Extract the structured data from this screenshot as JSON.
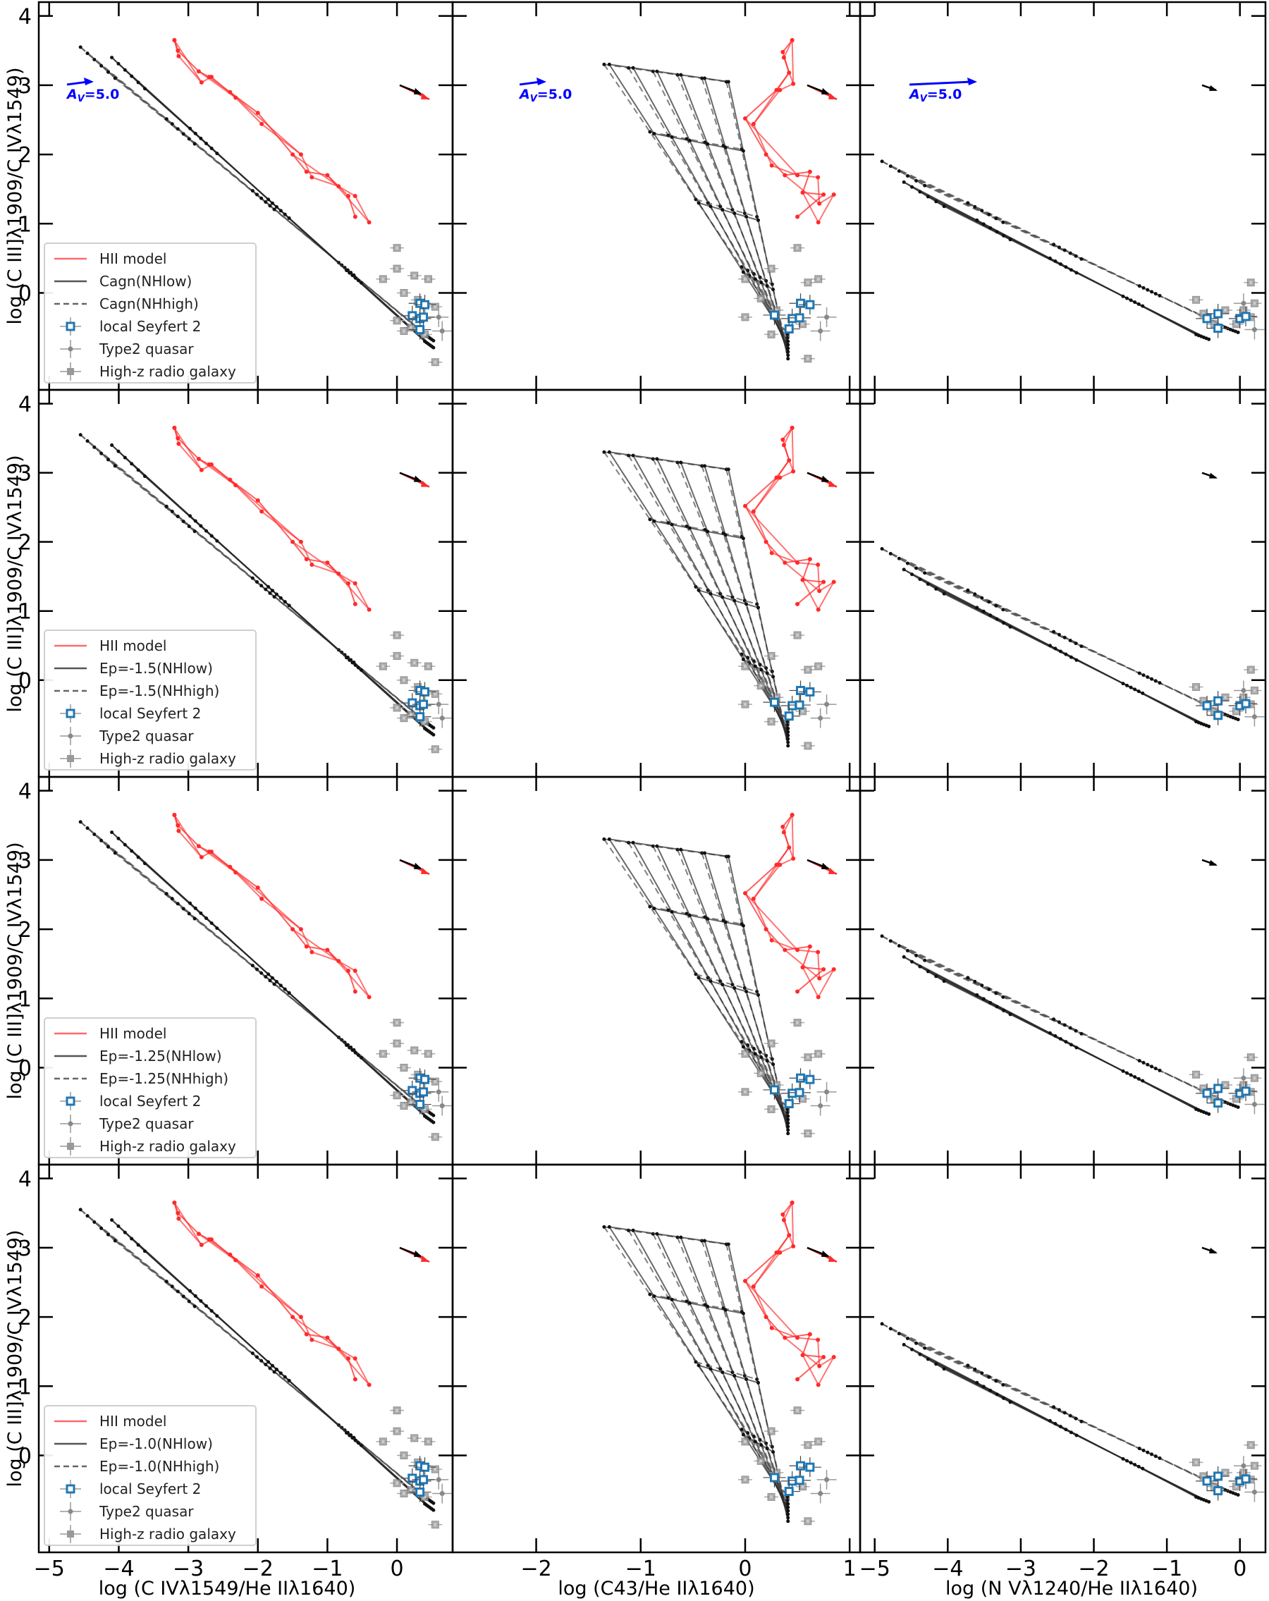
{
  "figure": {
    "ylabel": "log (C III]λ1909/C IVλ1549)",
    "xlabels": [
      "log (C IVλ1549/He IIλ1640)",
      "log (C43/He IIλ1640)",
      "log (N Vλ1240/He IIλ1640)"
    ],
    "reddening_label": "A_V=5.0",
    "reddening_label_main": "A",
    "reddening_label_sub": "V",
    "reddening_label_val": "=5.0"
  },
  "legends": [
    {
      "items": [
        "HII model",
        "Cagn(NHlow)",
        "Cagn(NHhigh)",
        "local Seyfert 2",
        "Type2 quasar",
        "High-z radio galaxy"
      ]
    },
    {
      "items": [
        "HII model",
        "Ep=-1.5(NHlow)",
        "Ep=-1.5(NHhigh)",
        "local Seyfert 2",
        "Type2 quasar",
        "High-z radio galaxy"
      ]
    },
    {
      "items": [
        "HII model",
        "Ep=-1.25(NHlow)",
        "Ep=-1.25(NHhigh)",
        "local Seyfert 2",
        "Type2 quasar",
        "High-z radio galaxy"
      ]
    },
    {
      "items": [
        "HII model",
        "Ep=-1.0(NHlow)",
        "Ep=-1.0(NHhigh)",
        "local Seyfert 2",
        "Type2 quasar",
        "High-z radio galaxy"
      ]
    }
  ],
  "colors": {
    "hii": "#ff2a2a",
    "agn": "#333333",
    "seyfert": "#1f77b4",
    "obs": "#808080",
    "av_arrow": "#0000ff"
  },
  "chart_data": {
    "type": "scatter",
    "title": "",
    "layout": "4 rows x 3 columns grid of line-ratio diagnostic diagrams (shared y-axis per row, shared x-axis per column)",
    "ylabel": "log (C III]λ1909/C IVλ1549)",
    "ylim": [
      -1.4,
      4.2
    ],
    "yticks": [
      0,
      1,
      2,
      3,
      4
    ],
    "columns": [
      {
        "xlabel": "log (C IVλ1549/He IIλ1640)",
        "xlim": [
          -5.15,
          0.8
        ],
        "xticks": [
          -5,
          -4,
          -3,
          -2,
          -1,
          0
        ]
      },
      {
        "xlabel": "log (C43/He IIλ1640)",
        "xlim": [
          -2.8,
          1.1
        ],
        "xticks": [
          -2,
          -1,
          0,
          1
        ]
      },
      {
        "xlabel": "log (N Vλ1240/He IIλ1640)",
        "xlim": [
          -5.2,
          0.35
        ],
        "xticks": [
          -5,
          -4,
          -3,
          -2,
          -1,
          0
        ]
      }
    ],
    "rows": [
      {
        "model": "Cagn",
        "legend": [
          "HII model",
          "Cagn(NHlow)",
          "Cagn(NHhigh)",
          "local Seyfert 2",
          "Type2 quasar",
          "High-z radio galaxy"
        ]
      },
      {
        "model": "Ep=-1.5",
        "legend": [
          "HII model",
          "Ep=-1.5(NHlow)",
          "Ep=-1.5(NHhigh)",
          "local Seyfert 2",
          "Type2 quasar",
          "High-z radio galaxy"
        ]
      },
      {
        "model": "Ep=-1.25",
        "legend": [
          "HII model",
          "Ep=-1.25(NHlow)",
          "Ep=-1.25(NHhigh)",
          "local Seyfert 2",
          "Type2 quasar",
          "High-z radio galaxy"
        ]
      },
      {
        "model": "Ep=-1.0",
        "legend": [
          "HII model",
          "Ep=-1.0(NHlow)",
          "Ep=-1.0(NHhigh)",
          "local Seyfert 2",
          "Type2 quasar",
          "High-z radio galaxy"
        ]
      }
    ],
    "annotations": [
      {
        "text": "A_V=5.0",
        "panels": "top row",
        "color": "blue",
        "note": "reddening vector arrow, pointing right"
      },
      {
        "text": "",
        "panels": "all",
        "note": "small black/red reddening arrows near (x_max, y=3)"
      }
    ],
    "series": [
      {
        "name": "HII model",
        "style": "red line grid with dots",
        "col1_points": [
          [
            -3.2,
            3.65
          ],
          [
            -3.15,
            3.5
          ],
          [
            -2.85,
            3.2
          ],
          [
            -2.7,
            3.12
          ],
          [
            -2.4,
            2.9
          ],
          [
            -2.0,
            2.6
          ],
          [
            -1.5,
            2.0
          ],
          [
            -1.3,
            1.75
          ],
          [
            -1.0,
            1.7
          ],
          [
            -0.7,
            1.4
          ],
          [
            -0.6,
            1.1
          ]
        ],
        "col2_points": [
          [
            0.45,
            3.65
          ],
          [
            0.36,
            3.48
          ],
          [
            0.42,
            3.18
          ],
          [
            0.3,
            2.93
          ],
          [
            0.0,
            2.52
          ],
          [
            0.2,
            2.0
          ],
          [
            0.38,
            1.7
          ],
          [
            0.62,
            1.75
          ],
          [
            0.55,
            1.45
          ],
          [
            0.75,
            1.42
          ],
          [
            0.5,
            1.1
          ]
        ],
        "col3_points": []
      },
      {
        "name": "AGN model NHlow",
        "style": "solid dark-gray line grid with dots",
        "col1_range": {
          "x": [
            -4.1,
            0.4
          ],
          "y": [
            -0.7,
            3.4
          ]
        },
        "col2_range": {
          "x": [
            -1.3,
            0.6
          ],
          "y": [
            -0.7,
            3.3
          ]
        },
        "col3_range": {
          "x": [
            -4.6,
            -0.6
          ],
          "y": [
            -0.6,
            1.6
          ]
        }
      },
      {
        "name": "AGN model NHhigh",
        "style": "dashed gray line grid with dots",
        "col1_range": {
          "x": [
            -4.55,
            0.4
          ],
          "y": [
            -0.6,
            3.55
          ]
        },
        "col2_range": {
          "x": [
            -1.35,
            0.6
          ],
          "y": [
            -0.6,
            3.3
          ]
        },
        "col3_range": {
          "x": [
            -4.9,
            -0.2
          ],
          "y": [
            -0.5,
            1.9
          ]
        }
      },
      {
        "name": "local Seyfert 2",
        "marker": "blue open square with error bars",
        "col1_points": [
          [
            0.33,
            -0.15
          ],
          [
            0.4,
            -0.17
          ],
          [
            0.22,
            -0.33
          ],
          [
            0.33,
            -0.37
          ],
          [
            0.38,
            -0.35
          ],
          [
            0.33,
            -0.53
          ]
        ],
        "col2_points": [
          [
            0.53,
            -0.15
          ],
          [
            0.62,
            -0.17
          ],
          [
            0.28,
            -0.32
          ],
          [
            0.45,
            -0.37
          ],
          [
            0.52,
            -0.36
          ],
          [
            0.42,
            -0.52
          ]
        ],
        "col3_points": [
          [
            -0.45,
            -0.37
          ],
          [
            -0.3,
            -0.3
          ],
          [
            -0.3,
            -0.51
          ],
          [
            0.0,
            -0.37
          ],
          [
            0.08,
            -0.34
          ]
        ]
      },
      {
        "name": "Type2 quasar",
        "marker": "gray diamond with error bars",
        "col1_points": [
          [
            0.6,
            -0.35
          ],
          [
            0.65,
            -0.55
          ]
        ],
        "col2_points": [
          [
            0.78,
            -0.35
          ],
          [
            0.72,
            -0.55
          ]
        ],
        "col3_points": [
          [
            0.2,
            -0.53
          ],
          [
            0.05,
            -0.15
          ]
        ]
      },
      {
        "name": "High-z radio galaxy",
        "marker": "gray filled square",
        "col1_points": [
          [
            0.0,
            0.65
          ],
          [
            0.0,
            0.35
          ],
          [
            0.25,
            0.25
          ],
          [
            0.45,
            0.2
          ],
          [
            -0.2,
            0.2
          ],
          [
            0.1,
            0.0
          ],
          [
            0.3,
            -0.1
          ],
          [
            0.55,
            -0.2
          ],
          [
            0.0,
            -0.4
          ],
          [
            0.2,
            -0.5
          ],
          [
            0.4,
            -0.6
          ],
          [
            0.1,
            -0.55
          ],
          [
            0.55,
            -1.0
          ]
        ],
        "col2_points": [
          [
            0.5,
            0.65
          ],
          [
            0.0,
            0.2
          ],
          [
            0.25,
            0.35
          ],
          [
            0.7,
            0.2
          ],
          [
            0.6,
            0.15
          ],
          [
            0.15,
            -0.08
          ],
          [
            0.3,
            -0.25
          ],
          [
            0.0,
            -0.35
          ],
          [
            0.25,
            -0.6
          ],
          [
            0.55,
            -0.45
          ],
          [
            0.6,
            -0.95
          ]
        ],
        "col3_points": [
          [
            -0.6,
            -0.1
          ],
          [
            -0.5,
            -0.3
          ],
          [
            -0.2,
            -0.25
          ],
          [
            0.05,
            -0.25
          ],
          [
            0.15,
            0.15
          ],
          [
            0.2,
            -0.15
          ],
          [
            -0.05,
            -0.45
          ],
          [
            0.15,
            -0.35
          ],
          [
            -0.35,
            -0.45
          ]
        ]
      }
    ]
  }
}
